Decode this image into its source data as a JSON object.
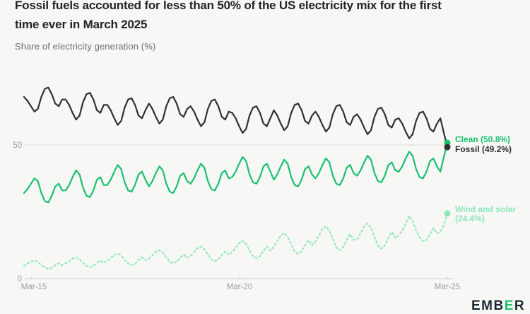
{
  "header": {
    "title_line1": "Fossil fuels accounted for less than 50% of the US electricity mix for the first",
    "title_line2": "time ever in March 2025",
    "subtitle": "Share of electricity generation (%)"
  },
  "chart_data": {
    "type": "line",
    "title": "Fossil fuels accounted for less than 50% of the US electricity mix for the first time ever in March 2025",
    "ylabel": "Share of electricity generation (%)",
    "x_unit": "month",
    "x_range": [
      "Jan-2015",
      "Mar-2025"
    ],
    "x_tick_labels": [
      "Mar-15",
      "Mar-20",
      "Mar-25"
    ],
    "y_tick_labels": [
      "0",
      "50"
    ],
    "ylim": [
      0,
      78
    ],
    "grid": "single horizontal gridline at 50",
    "legend_position": "right end-of-line labels",
    "series": [
      {
        "name": "Clean",
        "color": "#1ac06e",
        "style": "solid",
        "end_value": 50.8,
        "end_label": "Clean (50.8%)",
        "values": [
          32,
          33.5,
          35.5,
          37.5,
          36.5,
          32,
          29,
          28.5,
          31,
          34.5,
          35.5,
          33,
          33,
          35,
          38,
          40.5,
          39,
          34,
          31,
          30.5,
          33,
          37,
          38,
          35,
          35,
          37,
          40,
          42.5,
          41,
          36,
          33,
          32.5,
          35,
          39,
          40,
          37,
          34.5,
          36.5,
          39.5,
          42,
          40.5,
          35.5,
          32.5,
          32,
          34.5,
          38.5,
          39.5,
          36.5,
          35.5,
          37.5,
          40.5,
          43,
          41.5,
          36.5,
          33.5,
          33,
          35.5,
          39.5,
          40.5,
          37.5,
          38,
          40,
          43,
          45.5,
          44,
          39,
          36,
          35.5,
          38,
          42,
          43,
          40,
          37,
          39,
          42,
          44.5,
          43,
          38,
          35,
          34.5,
          37,
          41,
          42,
          39,
          37.5,
          39.5,
          42.5,
          45,
          43.5,
          38.5,
          35.5,
          35,
          37.5,
          41.5,
          42.5,
          39.5,
          38.5,
          40.5,
          43.5,
          46,
          44.5,
          39.5,
          36.5,
          36,
          38.5,
          42.5,
          43.5,
          40.5,
          40,
          42,
          45,
          47.5,
          46,
          41,
          38,
          37.5,
          40,
          44,
          45,
          42,
          40,
          45.5,
          50.8
        ]
      },
      {
        "name": "Fossil",
        "color": "#303030",
        "style": "solid",
        "end_value": 49.2,
        "end_label": "Fossil (49.2%)",
        "values": [
          68,
          66.5,
          64.5,
          62.5,
          63.5,
          68,
          71,
          71.5,
          69,
          65.5,
          64.5,
          67,
          67,
          65,
          62,
          59.5,
          61,
          66,
          69,
          69.5,
          67,
          63,
          62,
          65,
          65,
          63,
          60,
          57.5,
          59,
          64,
          67,
          67.5,
          65,
          61,
          60,
          63,
          65.5,
          63.5,
          60.5,
          58,
          59.5,
          64.5,
          67.5,
          68,
          65.5,
          61.5,
          60.5,
          63.5,
          64.5,
          62.5,
          59.5,
          57,
          58.5,
          63.5,
          66.5,
          67,
          64.5,
          60.5,
          59.5,
          62.5,
          62,
          60,
          57,
          54.5,
          56,
          61,
          64,
          64.5,
          62,
          58,
          57,
          60,
          63,
          61,
          58,
          55.5,
          57,
          62,
          65,
          65.5,
          63,
          59,
          58,
          61,
          62.5,
          60.5,
          57.5,
          55,
          56.5,
          61.5,
          64.5,
          65,
          62.5,
          58.5,
          57.5,
          60.5,
          61.5,
          59.5,
          56.5,
          54,
          55.5,
          60.5,
          63.5,
          64,
          61.5,
          57.5,
          56.5,
          59.5,
          60,
          58,
          55,
          52.5,
          54,
          59,
          62,
          62.5,
          60,
          56,
          55,
          58,
          60,
          54.5,
          49.2
        ]
      },
      {
        "name": "Wind and solar",
        "color": "#90e7ba",
        "style": "dashed",
        "end_value": 24.4,
        "end_label_line1": "Wind and solar",
        "end_label_line2": "(24.4%)",
        "values": [
          4.8,
          5.6,
          6.4,
          6.8,
          6.2,
          5.1,
          4.1,
          3.7,
          4.1,
          5,
          5.8,
          5,
          5.7,
          6.5,
          7.5,
          8,
          7.3,
          6,
          4.8,
          4.3,
          4.8,
          5.9,
          6.8,
          5.9,
          6.7,
          7.7,
          8.9,
          9.4,
          8.6,
          7.1,
          5.6,
          5.1,
          5.6,
          6.9,
          8,
          6.9,
          7.5,
          8.7,
          10,
          10.6,
          9.7,
          8,
          6.3,
          5.7,
          6.3,
          7.8,
          9,
          7.8,
          8.5,
          9.9,
          11.4,
          12,
          11,
          9,
          7.2,
          6.5,
          7.2,
          8.9,
          10.2,
          8.9,
          10,
          11.6,
          13.3,
          14.1,
          13,
          10.6,
          8.4,
          7.7,
          8.4,
          10.4,
          12,
          10.4,
          12.1,
          13.9,
          16.1,
          17,
          15.6,
          12.8,
          10.2,
          9.2,
          10.2,
          12.5,
          14.4,
          12.5,
          13.9,
          16.1,
          18.5,
          19.6,
          18,
          14.7,
          11.7,
          10.6,
          11.7,
          14.5,
          16.6,
          14.5,
          14.7,
          16.9,
          19.5,
          20.7,
          19,
          15.5,
          12.4,
          11.2,
          12.4,
          15.2,
          17.5,
          15.2,
          16.2,
          18,
          20.5,
          23.5,
          21.5,
          18,
          15.5,
          14,
          14.5,
          16.5,
          19,
          17,
          17.5,
          20,
          24.4
        ]
      }
    ]
  },
  "branding": {
    "logo_part1": "EMB",
    "logo_part2": "E",
    "logo_part3": "R"
  },
  "colors": {
    "background": "#f7f7f6",
    "title": "#242424",
    "subtitle": "#6e6e6e",
    "axis_text": "#9c9c9c",
    "gridline": "#dbdbdb",
    "axis_line": "#cfcfcf",
    "clean": "#1ac06e",
    "fossil": "#303030",
    "wind_solar": "#90e7ba"
  }
}
